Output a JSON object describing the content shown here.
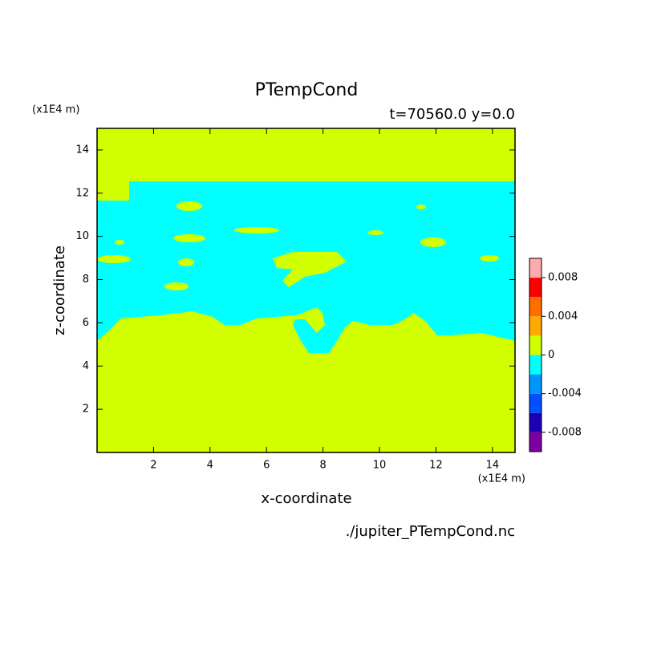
{
  "chart_data": {
    "type": "contour",
    "title": "PTempCond",
    "subtitle": "t=70560.0 y=0.0",
    "x_label": "x-coordinate",
    "y_label": "z-coordinate",
    "x_unit": "(x1E4 m)",
    "y_unit": "(x1E4 m)",
    "source": "./jupiter_PTempCond.nc",
    "xlim": [
      0,
      14.8
    ],
    "ylim": [
      0,
      15
    ],
    "xticks": [
      2,
      4,
      6,
      8,
      10,
      12,
      14
    ],
    "yticks": [
      2,
      4,
      6,
      8,
      10,
      12,
      14
    ],
    "levels": [
      -0.01,
      -0.008,
      -0.006,
      -0.004,
      -0.002,
      0,
      0.002,
      0.004,
      0.006,
      0.008,
      0.01
    ],
    "colors": [
      "#7f00a0",
      "#1e00b4",
      "#0050ff",
      "#0096ff",
      "#00ffff",
      "#d2ff00",
      "#ffaa00",
      "#ff6e00",
      "#ff0000",
      "#ffaaaa"
    ],
    "colorbar_ticks": [
      -0.008,
      -0.004,
      0,
      0.004,
      0.008
    ]
  }
}
